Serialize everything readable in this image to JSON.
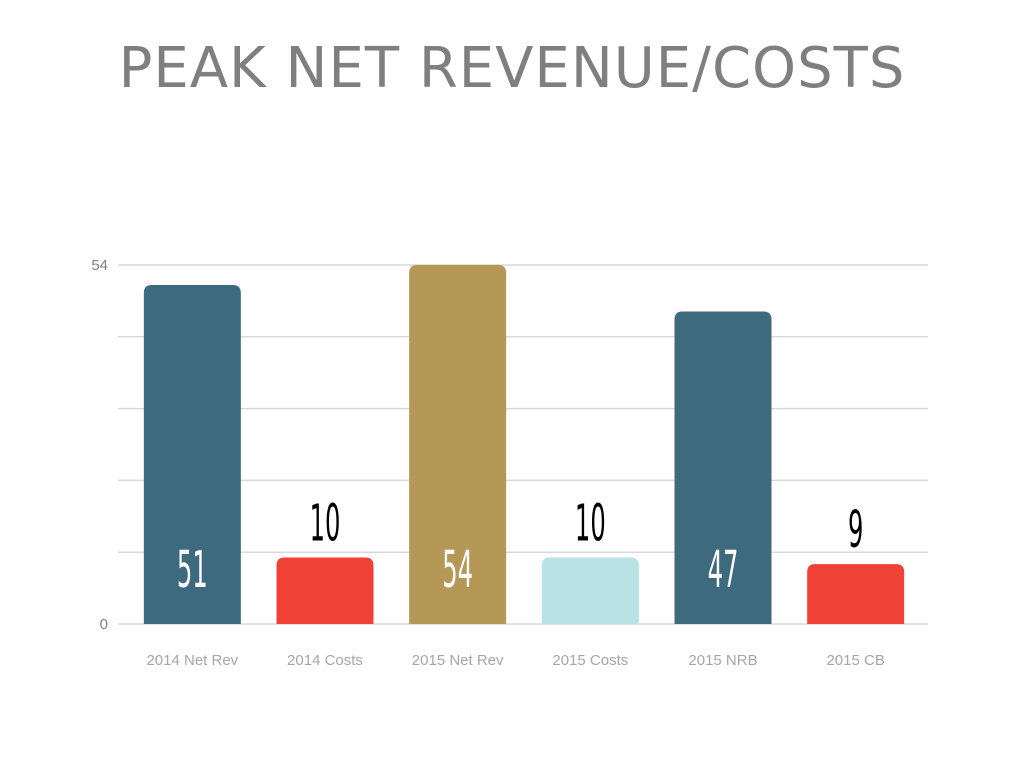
{
  "chart_data": {
    "type": "bar",
    "title": "PEAK NET REVENUE/COSTS",
    "categories": [
      "2014 Net Rev",
      "2014 Costs",
      "2015 Net Rev",
      "2015 Costs",
      "2015 NRB",
      "2015 CB"
    ],
    "values": [
      51,
      10,
      54,
      10,
      47,
      9
    ],
    "data_labels": [
      "51",
      "10",
      "54",
      "10",
      "47",
      "9"
    ],
    "bar_colors": [
      "#3d6a7e",
      "#f04136",
      "#b59856",
      "#b9e2e4",
      "#3d6a7e",
      "#f04136"
    ],
    "label_colors": [
      "#ffffff",
      "#000000",
      "#ffffff",
      "#000000",
      "#ffffff",
      "#000000"
    ],
    "label_inside": [
      true,
      false,
      true,
      false,
      true,
      false
    ],
    "y_ticks": [
      "0",
      "54"
    ],
    "ylim": [
      0,
      54
    ],
    "grid": true,
    "xlabel": "",
    "ylabel": ""
  }
}
